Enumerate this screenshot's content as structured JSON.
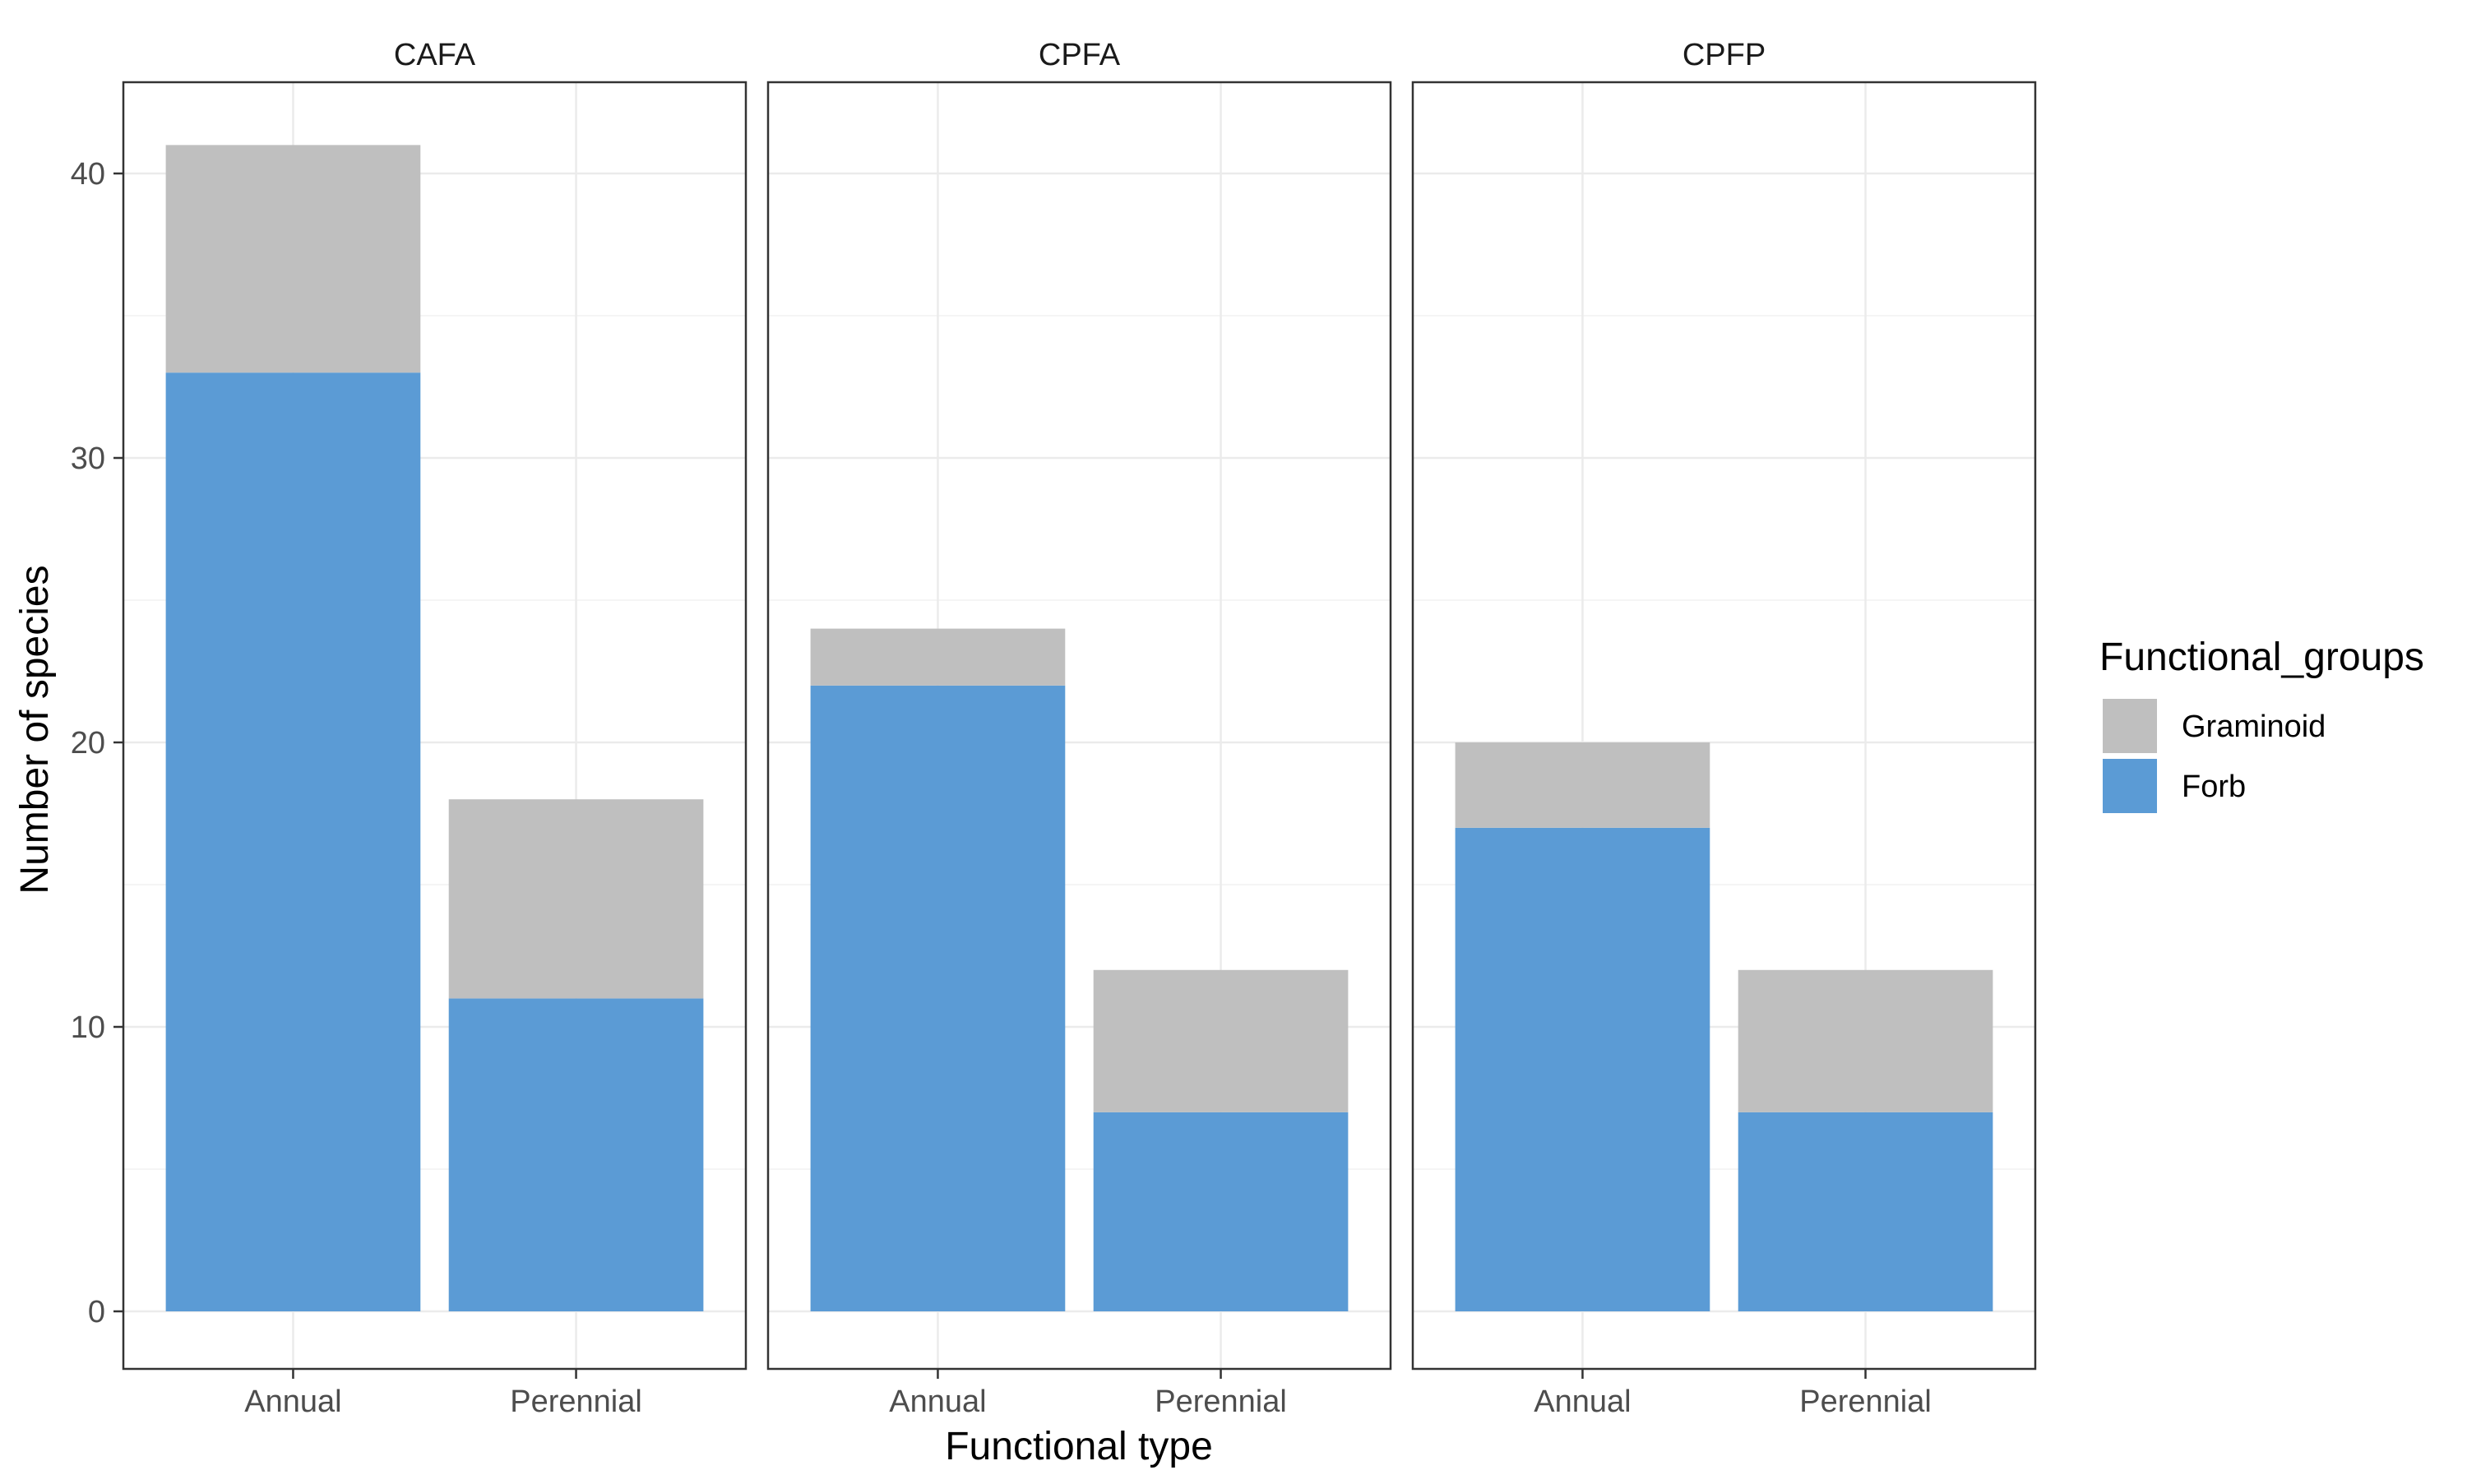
{
  "chart_data": {
    "type": "bar",
    "stacked": true,
    "xlabel": "Functional type",
    "ylabel": "Number of species",
    "categories": [
      "Annual",
      "Perennial"
    ],
    "ylim": [
      0,
      44
    ],
    "yticks": [
      0,
      10,
      20,
      30,
      40
    ],
    "grid": true,
    "legend_position": "right",
    "legend": {
      "title": "Functional_groups",
      "entries": [
        {
          "name": "Graminoid",
          "color": "#bfbfbf"
        },
        {
          "name": "Forb",
          "color": "#5b9bd5"
        }
      ]
    },
    "panels": [
      {
        "title": "CAFA",
        "series": [
          {
            "name": "Forb",
            "values": [
              33,
              11
            ]
          },
          {
            "name": "Graminoid",
            "values": [
              8,
              7
            ]
          }
        ]
      },
      {
        "title": "CPFA",
        "series": [
          {
            "name": "Forb",
            "values": [
              22,
              7
            ]
          },
          {
            "name": "Graminoid",
            "values": [
              2,
              5
            ]
          }
        ]
      },
      {
        "title": "CPFP",
        "series": [
          {
            "name": "Forb",
            "values": [
              17,
              7
            ]
          },
          {
            "name": "Graminoid",
            "values": [
              3,
              5
            ]
          }
        ]
      }
    ]
  }
}
